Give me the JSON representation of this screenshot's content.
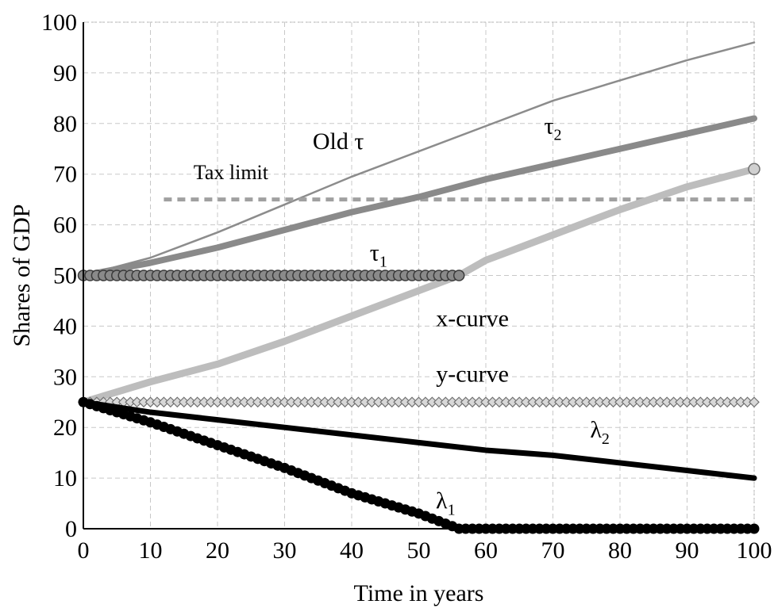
{
  "chart_data": {
    "type": "line",
    "title": "",
    "xlabel": "Time in years",
    "ylabel": "Shares of GDP",
    "xlim": [
      0,
      100
    ],
    "ylim": [
      0,
      100
    ],
    "xticks": [
      0,
      10,
      20,
      30,
      40,
      50,
      60,
      70,
      80,
      90,
      100
    ],
    "yticks": [
      0,
      10,
      20,
      30,
      40,
      50,
      60,
      70,
      80,
      90,
      100
    ],
    "grid": true,
    "legend": "none",
    "colors": {
      "old_tau": "#8c8c8c",
      "tau2": "#8a8a8a",
      "tau1": "#6e6e6e",
      "x_curve": "#bdbdbd",
      "y_curve": "#a8a8a8",
      "tax_limit": "#a0a0a0",
      "lambda1": "#000000",
      "lambda2": "#000000"
    },
    "series": [
      {
        "key": "old_tau",
        "x": [
          0,
          10,
          20,
          30,
          40,
          50,
          60,
          70,
          80,
          90,
          100
        ],
        "y": [
          50,
          53.5,
          58.5,
          64,
          69.5,
          74.5,
          79.5,
          84.5,
          88.5,
          92.5,
          96
        ]
      },
      {
        "key": "tau2",
        "x": [
          0,
          10,
          20,
          30,
          40,
          50,
          60,
          70,
          80,
          90,
          100
        ],
        "y": [
          50,
          52.5,
          55.5,
          59,
          62.5,
          65.5,
          69,
          72,
          75,
          78,
          81
        ]
      },
      {
        "key": "tau1",
        "x": [
          0,
          56
        ],
        "y": [
          50,
          50
        ]
      },
      {
        "key": "x_curve",
        "x": [
          0,
          10,
          20,
          30,
          40,
          50,
          56,
          60,
          70,
          80,
          90,
          100
        ],
        "y": [
          25,
          29,
          32.5,
          37,
          42,
          47,
          50,
          53,
          58,
          63,
          67.5,
          71
        ]
      },
      {
        "key": "y_curve",
        "x": [
          0,
          100
        ],
        "y": [
          25,
          25
        ]
      },
      {
        "key": "tax_limit",
        "x": [
          12,
          100
        ],
        "y": [
          65,
          65
        ]
      },
      {
        "key": "lambda1",
        "x": [
          0,
          10,
          20,
          30,
          40,
          50,
          56,
          60,
          70,
          80,
          90,
          100
        ],
        "y": [
          25,
          21,
          16.5,
          12,
          7,
          3,
          0,
          0,
          0,
          0,
          0,
          0
        ]
      },
      {
        "key": "lambda2",
        "x": [
          0,
          10,
          20,
          30,
          40,
          50,
          60,
          70,
          80,
          90,
          100
        ],
        "y": [
          25,
          23,
          21.5,
          20,
          18.5,
          17,
          15.5,
          14.5,
          13,
          11.5,
          10
        ]
      }
    ],
    "annotations": [
      {
        "key": "old_tau",
        "base": "Old τ",
        "sub": "",
        "x": 38,
        "y": 75
      },
      {
        "key": "tau2",
        "base": "τ",
        "sub": "2",
        "x": 70,
        "y": 78
      },
      {
        "key": "tax_limit",
        "base": "Tax limit",
        "sub": "",
        "x": 22,
        "y": 69
      },
      {
        "key": "tau1",
        "base": "τ",
        "sub": "1",
        "x": 44,
        "y": 53
      },
      {
        "key": "x_curve",
        "base": "x-curve",
        "sub": "",
        "x": 58,
        "y": 40
      },
      {
        "key": "y_curve",
        "base": "y-curve",
        "sub": "",
        "x": 58,
        "y": 29
      },
      {
        "key": "lambda2",
        "base": "λ",
        "sub": "2",
        "x": 77,
        "y": 18
      },
      {
        "key": "lambda1",
        "base": "λ",
        "sub": "1",
        "x": 54,
        "y": 4
      }
    ]
  }
}
